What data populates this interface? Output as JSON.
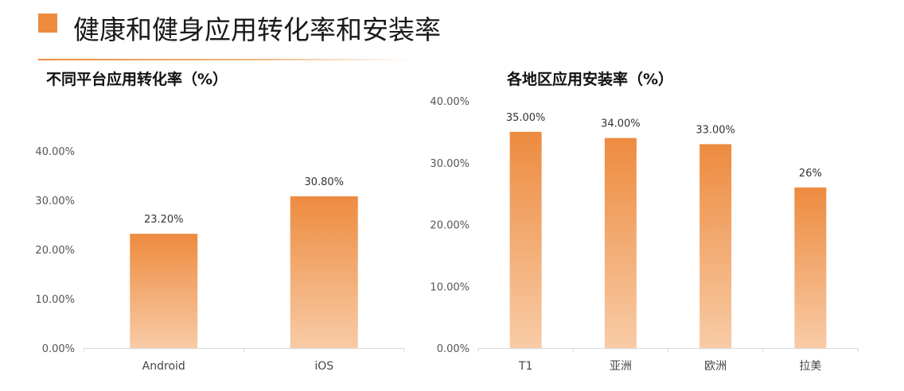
{
  "page": {
    "title": "健康和健身应用转化率和安装率",
    "accent_color": "#ED8B3F"
  },
  "chart_data": [
    {
      "type": "bar",
      "title": "不同平台应用转化率（%）",
      "categories": [
        "Android",
        "iOS"
      ],
      "values": [
        23.2,
        30.8
      ],
      "data_labels": [
        "23.20%",
        "30.80%"
      ],
      "ylim": [
        0,
        40
      ],
      "yticks": [
        "0.00%",
        "10.00%",
        "20.00%",
        "30.00%",
        "40.00%"
      ],
      "grid": false,
      "bar_color_top": "#ED8B3F",
      "bar_color_bottom": "#F8CBA6"
    },
    {
      "type": "bar",
      "title": "各地区应用安装率（%）",
      "categories": [
        "T1",
        "亚洲",
        "欧洲",
        "拉美"
      ],
      "values": [
        35,
        34,
        33,
        26
      ],
      "data_labels": [
        "35.00%",
        "34.00%",
        "33.00%",
        "26%"
      ],
      "ylim": [
        0,
        40
      ],
      "yticks": [
        "0.00%",
        "10.00%",
        "20.00%",
        "30.00%",
        "40.00%"
      ],
      "grid": false,
      "bar_color_top": "#ED8B3F",
      "bar_color_bottom": "#F8CBA6"
    }
  ]
}
